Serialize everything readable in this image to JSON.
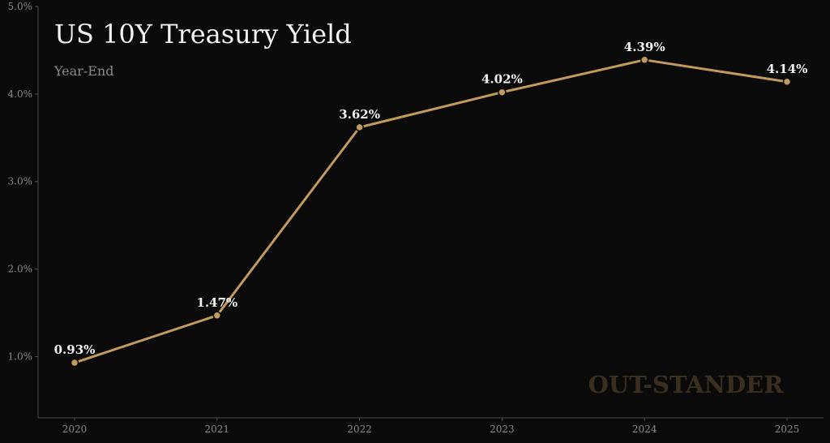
{
  "chart_data": {
    "type": "line",
    "title": "US 10Y Treasury Yield",
    "subtitle": "Year-End",
    "x": [
      "2020",
      "2021",
      "2022",
      "2023",
      "2024",
      "2025"
    ],
    "series": [
      {
        "values": [
          0.93,
          1.47,
          3.62,
          4.02,
          4.39,
          4.14
        ]
      }
    ],
    "data_labels": [
      "0.93%",
      "1.47%",
      "3.62%",
      "4.02%",
      "4.39%",
      "4.14%"
    ],
    "y_ticks": [
      1.0,
      2.0,
      3.0,
      4.0,
      5.0
    ],
    "y_tick_labels": [
      "1.0%",
      "2.0%",
      "3.0%",
      "4.0%",
      "5.0%"
    ],
    "ylim": [
      0.3,
      5.0
    ],
    "grid": false,
    "watermark": "OUT-STANDER",
    "colors": {
      "background": "#0a0a0a",
      "line": "#c19a5e",
      "marker_stroke": "#0a0a0a",
      "axis": "#4a4a4a",
      "watermark": "#3a2f1f"
    }
  }
}
